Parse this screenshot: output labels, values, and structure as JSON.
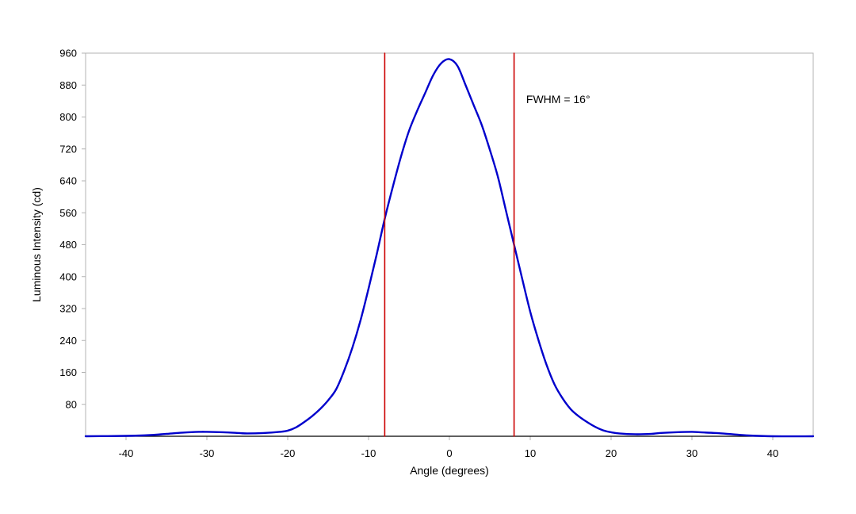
{
  "chart_data": {
    "type": "line",
    "title": "",
    "xlabel": "Angle (degrees)",
    "ylabel": "Luminous Intensity (cd)",
    "xlim": [
      -45,
      45
    ],
    "ylim": [
      0,
      960
    ],
    "x_ticks": [
      -40,
      -30,
      -20,
      -10,
      0,
      10,
      20,
      30,
      40
    ],
    "y_ticks": [
      80,
      160,
      240,
      320,
      400,
      480,
      560,
      640,
      720,
      800,
      880,
      960
    ],
    "grid": "horizontal",
    "legend": "none",
    "series": [
      {
        "color": "#0000cc",
        "x": [
          -45,
          -40,
          -37,
          -35,
          -33,
          -31,
          -30,
          -28,
          -26,
          -25,
          -23,
          -21,
          -20,
          -19,
          -18,
          -17,
          -16,
          -15,
          -14,
          -13,
          -12,
          -11,
          -10,
          -9,
          -8,
          -7,
          -6,
          -5,
          -4,
          -3,
          -2,
          -1,
          0,
          1,
          2,
          3,
          4,
          5,
          6,
          7,
          8,
          9,
          10,
          11,
          12,
          13,
          14,
          15,
          16,
          17,
          18,
          19,
          20,
          21,
          23,
          25,
          26,
          28,
          30,
          31,
          33,
          35,
          37,
          40,
          45
        ],
        "y": [
          0,
          1,
          3,
          6,
          9,
          11,
          11,
          10,
          8,
          7,
          8,
          11,
          14,
          22,
          35,
          50,
          68,
          90,
          118,
          165,
          222,
          290,
          370,
          455,
          545,
          625,
          700,
          765,
          815,
          860,
          905,
          935,
          945,
          928,
          880,
          830,
          780,
          718,
          650,
          565,
          480,
          395,
          312,
          242,
          180,
          130,
          95,
          68,
          50,
          36,
          24,
          15,
          10,
          7,
          5,
          6,
          8,
          10,
          11,
          10,
          8,
          5,
          2,
          0,
          0
        ]
      },
      {
        "color": "#cc0000",
        "x": [
          -8,
          -8
        ],
        "y": [
          0,
          960
        ]
      },
      {
        "color": "#cc0000",
        "x": [
          8,
          8
        ],
        "y": [
          0,
          960
        ]
      }
    ],
    "annotations": [
      {
        "text": "FWHM = 16°",
        "x": 9.5,
        "y": 835
      }
    ]
  }
}
